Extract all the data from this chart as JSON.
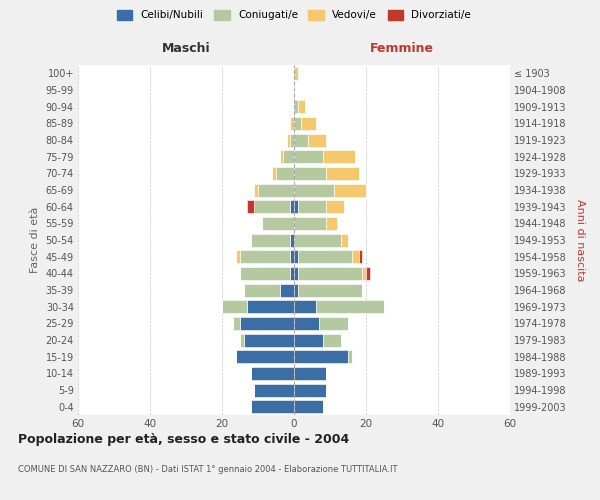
{
  "age_groups": [
    "0-4",
    "5-9",
    "10-14",
    "15-19",
    "20-24",
    "25-29",
    "30-34",
    "35-39",
    "40-44",
    "45-49",
    "50-54",
    "55-59",
    "60-64",
    "65-69",
    "70-74",
    "75-79",
    "80-84",
    "85-89",
    "90-94",
    "95-99",
    "100+"
  ],
  "birth_years": [
    "1999-2003",
    "1994-1998",
    "1989-1993",
    "1984-1988",
    "1979-1983",
    "1974-1978",
    "1969-1973",
    "1964-1968",
    "1959-1963",
    "1954-1958",
    "1949-1953",
    "1944-1948",
    "1939-1943",
    "1934-1938",
    "1929-1933",
    "1924-1928",
    "1919-1923",
    "1914-1918",
    "1909-1913",
    "1904-1908",
    "≤ 1903"
  ],
  "colors": {
    "celibi": "#3a6ea5",
    "coniugati": "#b5c9a0",
    "vedovi": "#f5c86e",
    "divorziati": "#c0392b"
  },
  "males": {
    "celibi": [
      12,
      11,
      12,
      16,
      14,
      15,
      13,
      4,
      1,
      1,
      1,
      0,
      1,
      0,
      0,
      0,
      0,
      0,
      0,
      0,
      0
    ],
    "coniugati": [
      0,
      0,
      0,
      0,
      1,
      2,
      7,
      10,
      14,
      14,
      11,
      9,
      10,
      10,
      5,
      3,
      1,
      0,
      0,
      0,
      0
    ],
    "vedovi": [
      0,
      0,
      0,
      0,
      0,
      0,
      0,
      0,
      0,
      1,
      0,
      0,
      0,
      1,
      1,
      1,
      1,
      1,
      0,
      0,
      0
    ],
    "divorziati": [
      0,
      0,
      0,
      0,
      0,
      0,
      0,
      0,
      0,
      0,
      0,
      0,
      2,
      0,
      0,
      0,
      0,
      0,
      0,
      0,
      0
    ]
  },
  "females": {
    "nubili": [
      8,
      9,
      9,
      15,
      8,
      7,
      6,
      1,
      1,
      1,
      0,
      0,
      1,
      0,
      0,
      0,
      0,
      0,
      0,
      0,
      0
    ],
    "coniugate": [
      0,
      0,
      0,
      1,
      5,
      8,
      19,
      18,
      18,
      15,
      13,
      9,
      8,
      11,
      9,
      8,
      4,
      2,
      1,
      0,
      0
    ],
    "vedove": [
      0,
      0,
      0,
      0,
      0,
      0,
      0,
      0,
      1,
      2,
      2,
      3,
      5,
      9,
      9,
      9,
      5,
      4,
      2,
      0,
      1
    ],
    "divorziate": [
      0,
      0,
      0,
      0,
      0,
      0,
      0,
      0,
      1,
      1,
      0,
      0,
      0,
      0,
      0,
      0,
      0,
      0,
      0,
      0,
      0
    ]
  },
  "title": "Popolazione per età, sesso e stato civile - 2004",
  "subtitle": "COMUNE DI SAN NAZZARO (BN) - Dati ISTAT 1° gennaio 2004 - Elaborazione TUTTITALIA.IT",
  "xlabel_left": "Maschi",
  "xlabel_right": "Femmine",
  "ylabel_left": "Fasce di età",
  "ylabel_right": "Anni di nascita",
  "legend_labels": [
    "Celibi/Nubili",
    "Coniugati/e",
    "Vedovi/e",
    "Divorziati/e"
  ],
  "xlim": 60,
  "bg_color": "#f0f0f0",
  "plot_bg": "#ffffff",
  "grid_color": "#cccccc"
}
